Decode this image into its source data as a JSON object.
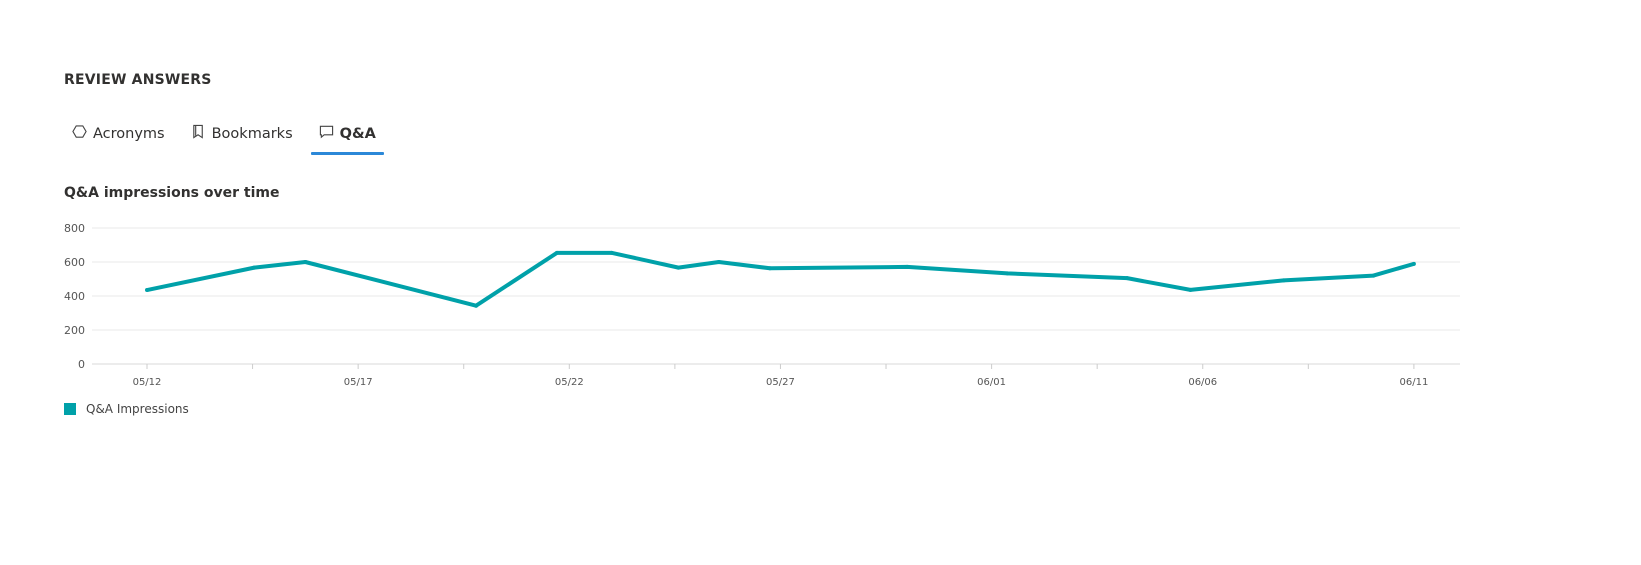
{
  "header": {
    "title": "REVIEW ANSWERS"
  },
  "tabs": [
    {
      "label": "Acronyms",
      "icon": "hexagon-icon",
      "active": false
    },
    {
      "label": "Bookmarks",
      "icon": "bookmark-icon",
      "active": false
    },
    {
      "label": "Q&A",
      "icon": "comment-icon",
      "active": true
    }
  ],
  "colors": {
    "accent": "#2b88d8",
    "series": "#00a1a9"
  },
  "chart_data": {
    "type": "line",
    "title": "Q&A impressions over time",
    "xlabel": "",
    "ylabel": "",
    "ylim": [
      0,
      800
    ],
    "y_ticks": [
      "0",
      "200",
      "400",
      "600",
      "800"
    ],
    "x_ticks": [
      "05/12",
      "05/17",
      "05/22",
      "05/27",
      "06/01",
      "06/06",
      "06/11"
    ],
    "grid": true,
    "legend": "bottom-left",
    "series": [
      {
        "name": "Q&A Impressions",
        "color": "#00a1a9",
        "x": [
          "05/12 00:00",
          "05/14 13:00",
          "05/15 18:00",
          "05/19 19:00",
          "05/21 17:00",
          "05/23 00:00",
          "05/24 14:00",
          "05/25 13:00",
          "05/26 18:00",
          "05/30 00:00",
          "06/01 09:00",
          "06/04 05:00",
          "06/05 17:00",
          "06/07 22:00",
          "06/10 01:00",
          "06/11 00:00"
        ],
        "values": [
          435,
          567,
          600,
          343,
          654,
          654,
          567,
          600,
          563,
          571,
          533,
          505,
          436,
          492,
          520,
          589
        ]
      }
    ]
  }
}
